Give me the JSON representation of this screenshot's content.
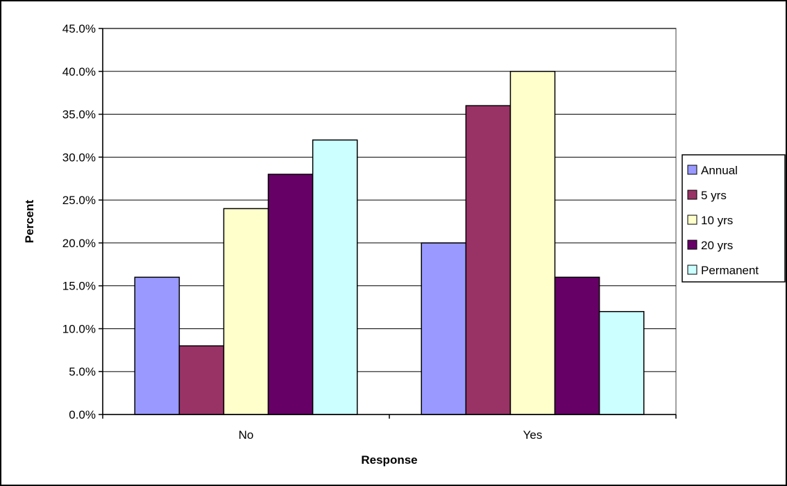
{
  "chart_data": {
    "type": "bar",
    "title": "",
    "xlabel": "Response",
    "ylabel": "Percent",
    "categories": [
      "No",
      "Yes"
    ],
    "ylim": [
      0,
      45
    ],
    "yticks": [
      0,
      5,
      10,
      15,
      20,
      25,
      30,
      35,
      40,
      45
    ],
    "ytick_labels": [
      "0.0%",
      "5.0%",
      "10.0%",
      "15.0%",
      "20.0%",
      "25.0%",
      "30.0%",
      "35.0%",
      "40.0%",
      "45.0%"
    ],
    "value_format": "percent",
    "grid": "horizontal",
    "legend_position": "right",
    "series": [
      {
        "name": "Annual",
        "color": "#9999ff",
        "values": [
          16,
          20
        ]
      },
      {
        "name": "5 yrs",
        "color": "#993366",
        "values": [
          8,
          36
        ]
      },
      {
        "name": "10 yrs",
        "color": "#ffffcc",
        "values": [
          24,
          40
        ]
      },
      {
        "name": "20 yrs",
        "color": "#660066",
        "values": [
          28,
          16
        ]
      },
      {
        "name": "Permanent",
        "color": "#ccffff",
        "values": [
          32,
          12
        ]
      }
    ]
  }
}
